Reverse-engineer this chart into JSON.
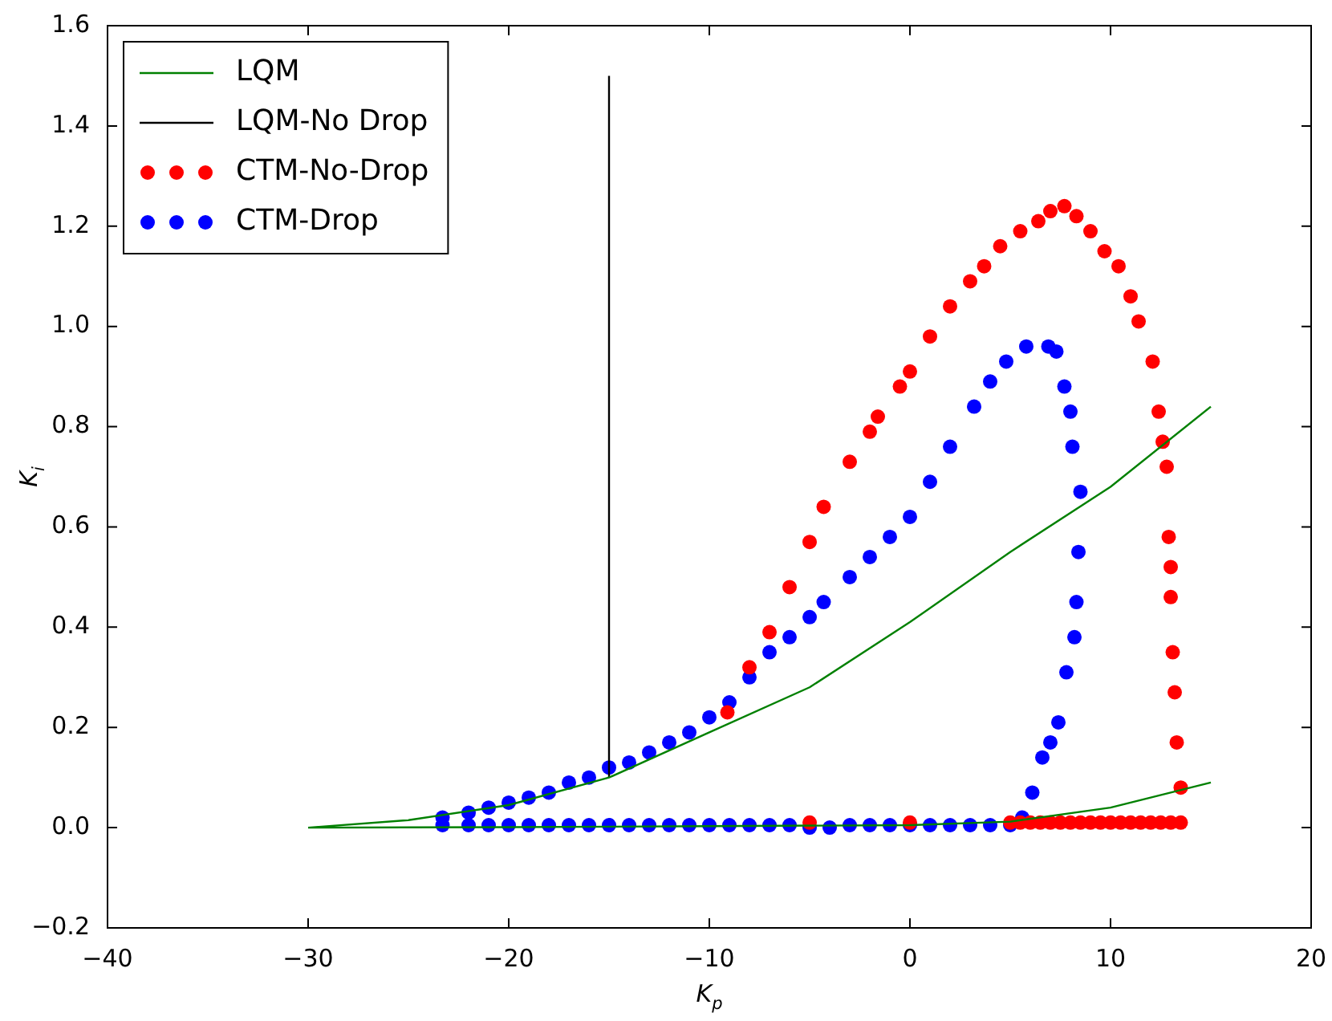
{
  "chart_data": {
    "type": "scatter",
    "xlabel": "K$_{p}$",
    "ylabel": "K$_{i}$",
    "xlim": [
      -40,
      20
    ],
    "xticks": [
      -40,
      -30,
      -20,
      -10,
      0,
      10,
      20
    ],
    "ylim": [
      -0.2,
      1.6
    ],
    "yticks": [
      {
        "value": -0.2,
        "label": "−0.2"
      },
      {
        "value": 0,
        "label": "0.0"
      },
      {
        "value": 0.2,
        "label": "0.2"
      },
      {
        "value": 0.4,
        "label": "0.4"
      },
      {
        "value": 0.6,
        "label": "0.6"
      },
      {
        "value": 0.8,
        "label": "0.8"
      },
      {
        "value": 1.0,
        "label": "1.0"
      },
      {
        "value": 1.2,
        "label": "1.2"
      },
      {
        "value": 1.4,
        "label": "1.4"
      },
      {
        "value": 1.6,
        "label": "1.6"
      }
    ],
    "grid": false,
    "legend": "top left",
    "series": [
      {
        "name": "LQM",
        "type": "line",
        "color": "#008000",
        "line_style": "solid",
        "x": [
          -30,
          -25,
          -20,
          -15,
          -10,
          -5,
          0,
          5,
          10,
          15,
          null,
          -30,
          -20,
          -10,
          0,
          5,
          10,
          15
        ],
        "values": [
          0,
          0.015,
          0.045,
          0.1,
          0.19,
          0.28,
          0.41,
          0.55,
          0.68,
          0.84,
          null,
          0,
          0.001,
          0.003,
          0.005,
          0.012,
          0.04,
          0.09
        ]
      },
      {
        "name": "LQM-No Drop",
        "type": "line",
        "color": "#000000",
        "line_style": "solid",
        "x": [
          -15,
          -15
        ],
        "values": [
          0.1,
          1.5
        ]
      },
      {
        "name": "CTM-No-Drop",
        "type": "scatter",
        "marker": "circle",
        "color": "#ff0000",
        "x": [
          -9.1,
          -8,
          -7,
          -6,
          -5,
          -4.3,
          -3,
          -2,
          -1.6,
          -0.5,
          0,
          1.0,
          2,
          3,
          3.7,
          4.5,
          5.5,
          6.4,
          7,
          7.7,
          8.3,
          9.0,
          9.7,
          10.4,
          11,
          11.4,
          12.1,
          12.4,
          12.6,
          12.8,
          12.9,
          13.0,
          13.0,
          13.1,
          13.2,
          13.3,
          13.5,
          -5,
          0,
          5,
          5.5,
          6,
          6.5,
          7,
          7.5,
          8,
          8.5,
          9,
          9.5,
          10,
          10.5,
          11,
          11.5,
          12,
          12.5,
          13,
          13.5
        ],
        "values": [
          0.23,
          0.32,
          0.39,
          0.48,
          0.57,
          0.64,
          0.73,
          0.79,
          0.82,
          0.88,
          0.91,
          0.98,
          1.04,
          1.09,
          1.12,
          1.16,
          1.19,
          1.21,
          1.23,
          1.24,
          1.22,
          1.19,
          1.15,
          1.12,
          1.06,
          1.01,
          0.93,
          0.83,
          0.77,
          0.72,
          0.58,
          0.52,
          0.46,
          0.35,
          0.27,
          0.17,
          0.08,
          0.01,
          0.01,
          0.01,
          0.01,
          0.01,
          0.01,
          0.01,
          0.01,
          0.01,
          0.01,
          0.01,
          0.01,
          0.01,
          0.01,
          0.01,
          0.01,
          0.01,
          0.01,
          0.01,
          0.01
        ]
      },
      {
        "name": "CTM-Drop",
        "type": "scatter",
        "marker": "circle",
        "color": "#0000ff",
        "x": [
          -23.3,
          -22,
          -21,
          -20,
          -19,
          -18,
          -17,
          -16,
          -15,
          -14,
          -13,
          -12,
          -11,
          -10,
          -9,
          -8,
          -7,
          -6,
          -5,
          -4.3,
          -3,
          -2,
          -1,
          0,
          1,
          2,
          3.2,
          4,
          4.8,
          5.8,
          6.9,
          7.3,
          7.7,
          8.0,
          8.1,
          8.5,
          8.4,
          8.3,
          8.2,
          7.8,
          7.4,
          7.0,
          6.6,
          6.1,
          5.6,
          5,
          4,
          3,
          2,
          1,
          0,
          -1,
          -2,
          -3,
          -4,
          -5,
          -6,
          -7,
          -8,
          -9,
          -10,
          -11,
          -12,
          -13,
          -14,
          -15,
          -16,
          -17,
          -18,
          -19,
          -20,
          -21,
          -22,
          -23.3
        ],
        "values": [
          0.02,
          0.03,
          0.04,
          0.05,
          0.06,
          0.07,
          0.09,
          0.1,
          0.12,
          0.13,
          0.15,
          0.17,
          0.19,
          0.22,
          0.25,
          0.3,
          0.35,
          0.38,
          0.42,
          0.45,
          0.5,
          0.54,
          0.58,
          0.62,
          0.69,
          0.76,
          0.84,
          0.89,
          0.93,
          0.96,
          0.96,
          0.95,
          0.88,
          0.83,
          0.76,
          0.67,
          0.55,
          0.45,
          0.38,
          0.31,
          0.21,
          0.17,
          0.14,
          0.07,
          0.02,
          0.005,
          0.005,
          0.005,
          0.005,
          0.005,
          0.005,
          0.005,
          0.005,
          0.005,
          0.0,
          0.0,
          0.005,
          0.005,
          0.005,
          0.005,
          0.005,
          0.005,
          0.005,
          0.005,
          0.005,
          0.005,
          0.005,
          0.005,
          0.005,
          0.005,
          0.005,
          0.005,
          0.005,
          0.005
        ]
      }
    ]
  }
}
